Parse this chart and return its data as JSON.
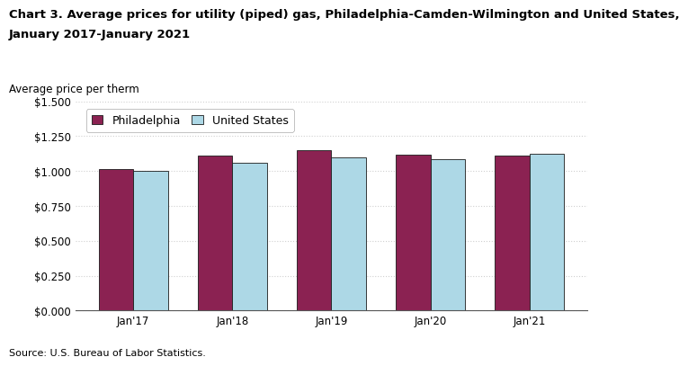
{
  "title_line1": "Chart 3. Average prices for utility (piped) gas, Philadelphia-Camden-Wilmington and United States,",
  "title_line2": "January 2017-January 2021",
  "ylabel": "Average price per therm",
  "source": "Source: U.S. Bureau of Labor Statistics.",
  "categories": [
    "Jan'17",
    "Jan'18",
    "Jan'19",
    "Jan'20",
    "Jan'21"
  ],
  "philadelphia": [
    1.014,
    1.112,
    1.148,
    1.12,
    1.113
  ],
  "us": [
    1.003,
    1.06,
    1.096,
    1.082,
    1.122
  ],
  "philly_color": "#8B2252",
  "us_color": "#ADD8E6",
  "bar_edge_color": "#1a1a1a",
  "grid_color": "#d0d0d0",
  "ylim": [
    0,
    1.5
  ],
  "yticks": [
    0.0,
    0.25,
    0.5,
    0.75,
    1.0,
    1.25,
    1.5
  ],
  "legend_labels": [
    "Philadelphia",
    "United States"
  ],
  "bar_width": 0.35,
  "title_fontsize": 9.5,
  "axis_label_fontsize": 8.5,
  "tick_fontsize": 8.5,
  "legend_fontsize": 9,
  "source_fontsize": 8
}
